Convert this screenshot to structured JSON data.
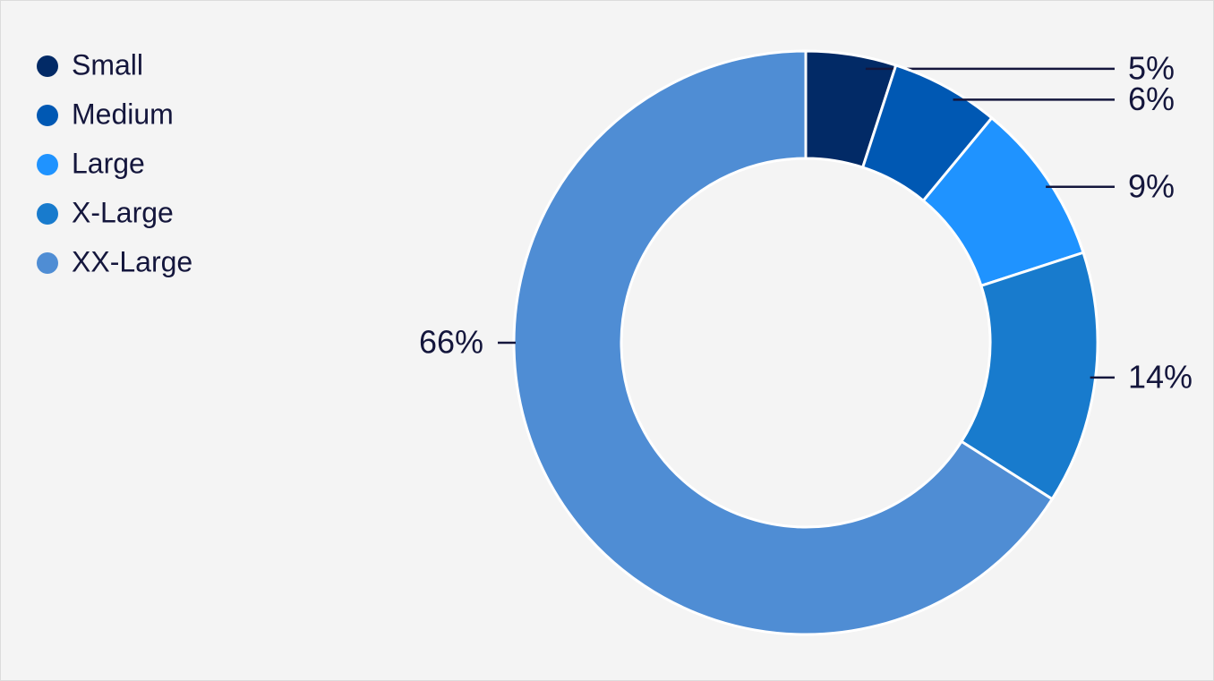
{
  "chart_data": {
    "type": "donut",
    "categories": [
      "Small",
      "Medium",
      "Large",
      "X-Large",
      "XX-Large"
    ],
    "values": [
      5,
      6,
      9,
      14,
      66
    ],
    "value_labels": [
      "5%",
      "6%",
      "9%",
      "14%",
      "66%"
    ],
    "colors": [
      "#022a66",
      "#0058b3",
      "#1f93ff",
      "#187bcd",
      "#4f8dd4"
    ],
    "legend": "top-left"
  }
}
